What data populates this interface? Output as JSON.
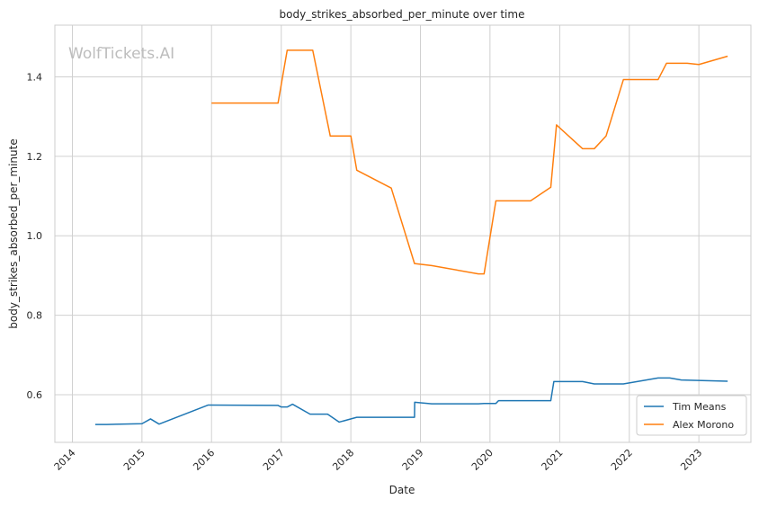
{
  "chart_data": {
    "type": "line",
    "title": "body_strikes_absorbed_per_minute over time",
    "xlabel": "Date",
    "ylabel": "body_strikes_absorbed_per_minute",
    "watermark": "WolfTickets.AI",
    "xlim": [
      "2013-10-01",
      "2023-10-01"
    ],
    "ylim": [
      0.48,
      1.53
    ],
    "x_ticks": [
      "2014",
      "2015",
      "2016",
      "2017",
      "2018",
      "2019",
      "2020",
      "2021",
      "2022",
      "2023"
    ],
    "y_ticks": [
      0.6,
      0.8,
      1.0,
      1.2,
      1.4
    ],
    "y_tick_labels": [
      "0.6",
      "0.8",
      "1.0",
      "1.2",
      "1.4"
    ],
    "grid": true,
    "legend_position": "bottom-right",
    "series": [
      {
        "name": "Tim Means",
        "color": "#1f77b4",
        "points": [
          [
            "2014-05-01",
            0.525
          ],
          [
            "2014-07-01",
            0.525
          ],
          [
            "2015-01-01",
            0.527
          ],
          [
            "2015-02-15",
            0.539
          ],
          [
            "2015-04-01",
            0.526
          ],
          [
            "2015-12-15",
            0.574
          ],
          [
            "2016-12-15",
            0.573
          ],
          [
            "2017-01-01",
            0.569
          ],
          [
            "2017-02-01",
            0.569
          ],
          [
            "2017-03-01",
            0.576
          ],
          [
            "2017-06-01",
            0.551
          ],
          [
            "2017-09-01",
            0.551
          ],
          [
            "2017-11-01",
            0.531
          ],
          [
            "2018-02-01",
            0.543
          ],
          [
            "2018-12-01",
            0.543
          ],
          [
            "2018-12-02",
            0.581
          ],
          [
            "2019-03-01",
            0.577
          ],
          [
            "2019-11-01",
            0.577
          ],
          [
            "2019-12-01",
            0.578
          ],
          [
            "2020-02-01",
            0.578
          ],
          [
            "2020-02-15",
            0.585
          ],
          [
            "2020-11-15",
            0.585
          ],
          [
            "2020-12-01",
            0.633
          ],
          [
            "2021-05-01",
            0.633
          ],
          [
            "2021-07-01",
            0.627
          ],
          [
            "2021-12-01",
            0.627
          ],
          [
            "2022-06-01",
            0.642
          ],
          [
            "2022-08-01",
            0.642
          ],
          [
            "2022-10-01",
            0.637
          ],
          [
            "2023-06-01",
            0.634
          ]
        ]
      },
      {
        "name": "Alex Morono",
        "color": "#ff7f0e",
        "points": [
          [
            "2016-01-01",
            1.334
          ],
          [
            "2016-12-15",
            1.334
          ],
          [
            "2017-02-01",
            1.467
          ],
          [
            "2017-06-15",
            1.467
          ],
          [
            "2017-09-15",
            1.251
          ],
          [
            "2018-01-01",
            1.251
          ],
          [
            "2018-02-01",
            1.165
          ],
          [
            "2018-08-01",
            1.12
          ],
          [
            "2018-12-01",
            0.93
          ],
          [
            "2019-03-01",
            0.925
          ],
          [
            "2019-11-01",
            0.904
          ],
          [
            "2019-12-01",
            0.904
          ],
          [
            "2020-02-01",
            1.088
          ],
          [
            "2020-08-01",
            1.088
          ],
          [
            "2020-11-15",
            1.122
          ],
          [
            "2020-12-15",
            1.279
          ],
          [
            "2021-05-01",
            1.219
          ],
          [
            "2021-07-01",
            1.219
          ],
          [
            "2021-09-01",
            1.251
          ],
          [
            "2021-12-01",
            1.393
          ],
          [
            "2022-06-01",
            1.393
          ],
          [
            "2022-07-15",
            1.434
          ],
          [
            "2022-11-01",
            1.434
          ],
          [
            "2023-01-01",
            1.431
          ],
          [
            "2023-06-01",
            1.452
          ]
        ]
      }
    ]
  }
}
